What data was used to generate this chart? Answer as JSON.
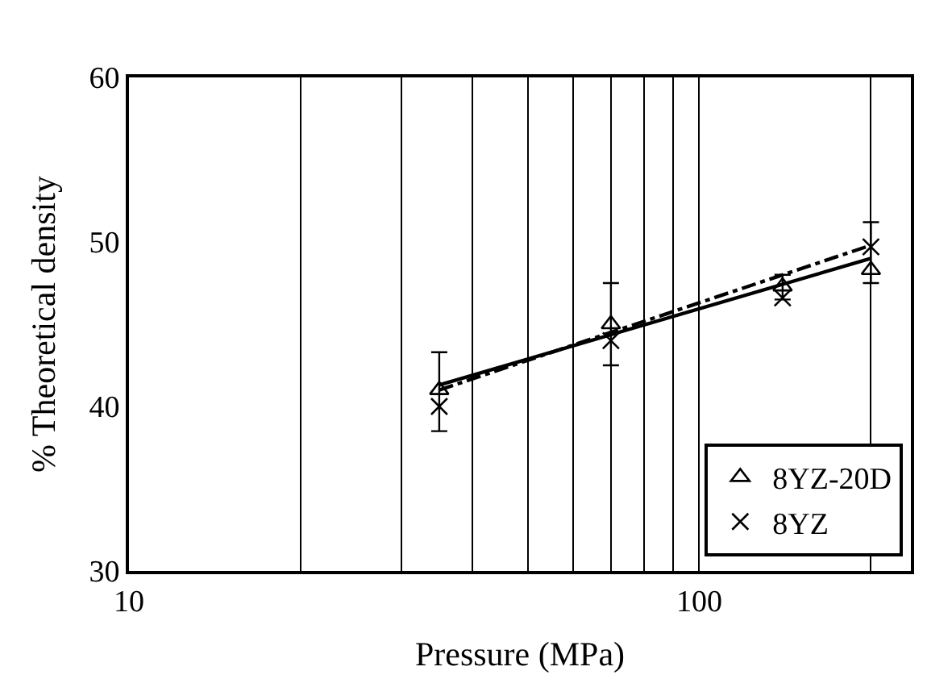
{
  "chart_data": {
    "type": "scatter",
    "xlabel": "Pressure (MPa)",
    "ylabel": "% Theoretical density",
    "log": "x",
    "xlim": [
      10,
      235
    ],
    "ylim": [
      30,
      60
    ],
    "xticks": [
      10,
      {
        "value": 20,
        "label": null
      },
      {
        "value": 30,
        "label": null
      },
      {
        "value": 40,
        "label": null
      },
      {
        "value": 50,
        "label": null
      },
      {
        "value": 60,
        "label": null
      },
      {
        "value": 70,
        "label": null
      },
      {
        "value": 80,
        "label": null
      },
      {
        "value": 90,
        "label": null
      },
      100,
      {
        "value": 200,
        "label": null
      }
    ],
    "yticks": [
      30,
      40,
      50,
      60
    ],
    "grid": "x",
    "legend": "bottom right",
    "series": [
      {
        "name": "8YZ-20D",
        "color": "#000000",
        "marker": "triangle",
        "x": [
          35,
          70,
          140,
          200
        ],
        "values": [
          41,
          45,
          47.3,
          48.3
        ],
        "errors": [
          [
            38.5,
            43.3
          ],
          [
            42.5,
            47.5
          ],
          [
            46.5,
            48
          ],
          [
            47.5,
            51.2
          ]
        ]
      },
      {
        "name": "8YZ",
        "color": "#000000",
        "marker": "cross",
        "x": [
          35,
          70,
          140,
          200
        ],
        "values": [
          40,
          44,
          46.6,
          49.7
        ]
      },
      {
        "type": "line",
        "color": "#000000",
        "line_style": "solid",
        "marker": "none",
        "x": [
          35,
          200
        ],
        "values": [
          41.3,
          49
        ]
      },
      {
        "type": "line",
        "color": "#000000",
        "line_style": "dashed",
        "marker": "none",
        "x": [
          35,
          200
        ],
        "values": [
          41,
          49.8
        ]
      }
    ]
  }
}
